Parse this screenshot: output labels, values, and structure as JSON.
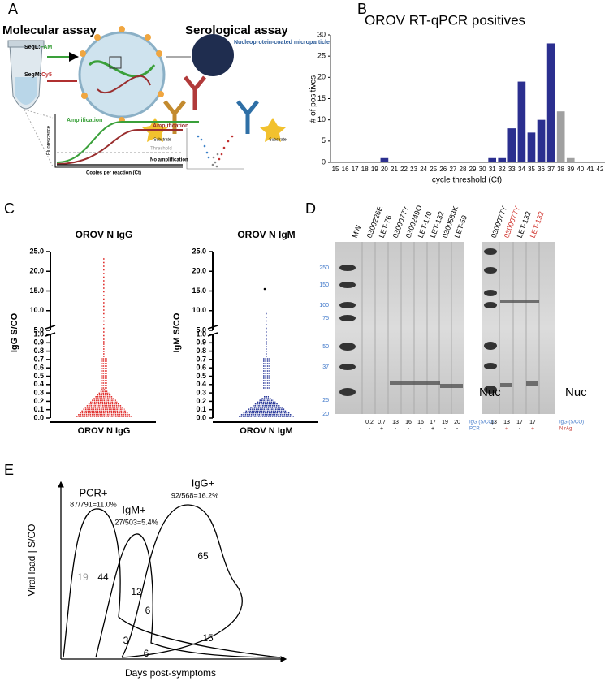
{
  "panel_a": {
    "label": "A",
    "molecular_title": "Molecular assay",
    "serological_title": "Serological assay",
    "segl": "SegL:",
    "segl_dye": "FAM",
    "segm": "SegM:",
    "segm_dye": "Cy5",
    "microparticle": "Nucleoprotein-coated microparticle",
    "substrate_left": "Substrate",
    "substrate_right": "Substrate",
    "amp_green": "Amplification",
    "amp_red": "Amplification",
    "threshold": "Threshold",
    "no_amp": "No amplification",
    "y_label": "Fluorescence",
    "x_label": "Copies per reaction (Ct)"
  },
  "chart_data": {
    "type": "bar",
    "label": "B",
    "title": "OROV RT-qPCR positives",
    "categories": [
      15,
      16,
      17,
      18,
      19,
      20,
      21,
      22,
      23,
      24,
      25,
      26,
      27,
      28,
      29,
      30,
      31,
      32,
      33,
      34,
      35,
      36,
      37,
      38,
      39,
      40,
      41,
      42
    ],
    "values": [
      0,
      0,
      0,
      0,
      0,
      1,
      0,
      0,
      0,
      0,
      0,
      0,
      0,
      0,
      0,
      0,
      1,
      1,
      8,
      19,
      7,
      10,
      28,
      12,
      1,
      0,
      0,
      0
    ],
    "colors": [
      "#2b2f8f",
      "#2b2f8f",
      "#2b2f8f",
      "#2b2f8f",
      "#2b2f8f",
      "#2b2f8f",
      "#2b2f8f",
      "#2b2f8f",
      "#2b2f8f",
      "#2b2f8f",
      "#2b2f8f",
      "#2b2f8f",
      "#2b2f8f",
      "#2b2f8f",
      "#2b2f8f",
      "#2b2f8f",
      "#2b2f8f",
      "#2b2f8f",
      "#2b2f8f",
      "#2b2f8f",
      "#2b2f8f",
      "#2b2f8f",
      "#2b2f8f",
      "#a0a0a0",
      "#a0a0a0",
      "#a0a0a0",
      "#a0a0a0",
      "#a0a0a0"
    ],
    "y_label": "# of positives",
    "x_label": "cycle threshold (Ct)",
    "ylim": [
      0,
      30
    ],
    "yticks": [
      0,
      5,
      10,
      15,
      20,
      25,
      30
    ]
  },
  "panel_c": {
    "label": "C",
    "plots": [
      {
        "title": "OROV N IgG",
        "y_label": "IgG S/CO",
        "x_label": "OROV N IgG",
        "color": "#e0312f",
        "upper_ticks": [
          {
            "value": 5,
            "label": "5.0"
          },
          {
            "value": 10,
            "label": "10.0"
          },
          {
            "value": 15,
            "label": "15.0"
          },
          {
            "value": 20,
            "label": "20.0"
          },
          {
            "value": 25,
            "label": "25.0"
          }
        ],
        "lower_ticks": [
          {
            "value": 0,
            "label": "0.0"
          },
          {
            "value": 0.1,
            "label": "0.1"
          },
          {
            "value": 0.2,
            "label": "0.2"
          },
          {
            "value": 0.3,
            "label": "0.3"
          },
          {
            "value": 0.4,
            "label": "0.4"
          },
          {
            "value": 0.5,
            "label": "0.5"
          },
          {
            "value": 0.6,
            "label": "0.6"
          },
          {
            "value": 0.7,
            "label": "0.7"
          },
          {
            "value": 0.8,
            "label": "0.8"
          },
          {
            "value": 0.9,
            "label": "0.9"
          },
          {
            "value": 1,
            "label": "1.0"
          }
        ]
      },
      {
        "title": "OROV N IgM",
        "y_label": "IgM S/CO",
        "x_label": "OROV N IgM",
        "color": "#2b3a9a",
        "upper_ticks": [
          {
            "value": 5,
            "label": "5.0"
          },
          {
            "value": 10,
            "label": "10.0"
          },
          {
            "value": 15,
            "label": "15.0"
          },
          {
            "value": 20,
            "label": "20.0"
          },
          {
            "value": 25,
            "label": "25.0"
          }
        ],
        "lower_ticks": [
          {
            "value": 0,
            "label": "0.0"
          },
          {
            "value": 0.1,
            "label": "0.1"
          },
          {
            "value": 0.2,
            "label": "0.2"
          },
          {
            "value": 0.3,
            "label": "0.3"
          },
          {
            "value": 0.4,
            "label": "0.4"
          },
          {
            "value": 0.5,
            "label": "0.5"
          },
          {
            "value": 0.6,
            "label": "0.6"
          },
          {
            "value": 0.7,
            "label": "0.7"
          },
          {
            "value": 0.8,
            "label": "0.8"
          },
          {
            "value": 0.9,
            "label": "0.9"
          },
          {
            "value": 1,
            "label": "1.0"
          }
        ]
      }
    ]
  },
  "panel_d": {
    "label": "D",
    "left_lanes": [
      "MW",
      "0300226E",
      "LET-76",
      "0300077Y",
      "0300249O",
      "LET-170",
      "LET-132",
      "0300583K",
      "LET-59"
    ],
    "right_lanes": [
      {
        "text": "0300077Y",
        "color": "#000000"
      },
      {
        "text": "0300077Y",
        "color": "#d0302a"
      },
      {
        "text": "LET-132",
        "color": "#000000"
      },
      {
        "text": "LET-132",
        "color": "#d0302a"
      }
    ],
    "mw_markers": [
      250,
      150,
      100,
      75,
      50,
      37,
      25,
      20
    ],
    "nuc_left": "Nuc",
    "nuc_right": "Nuc",
    "left_igg": [
      0.2,
      0.7,
      13,
      16,
      16,
      17,
      19,
      20
    ],
    "left_pcr": [
      "-",
      "+",
      "-",
      "-",
      "-",
      "+",
      "-",
      "-"
    ],
    "igg_label_left": "IgG (S/CO)",
    "pcr_label": "PCR",
    "right_igg": [
      13,
      13,
      17,
      17
    ],
    "right_nrag": [
      "-",
      "+",
      "-",
      "+"
    ],
    "igg_label_right": "IgG (S/CO)",
    "nrag_label": "N rAg"
  },
  "panel_e": {
    "label": "E",
    "pcr": "PCR+",
    "pcr_ratio": "87/791=11.0%",
    "igm": "IgM+",
    "igm_ratio": "27/503=5.4%",
    "igg": "IgG+",
    "igg_ratio": "92/568=16.2%",
    "counts": [
      19,
      44,
      12,
      65,
      6,
      3,
      6,
      15
    ],
    "y_label": "Viral load | S/CO",
    "x_label": "Days post-symptoms"
  }
}
